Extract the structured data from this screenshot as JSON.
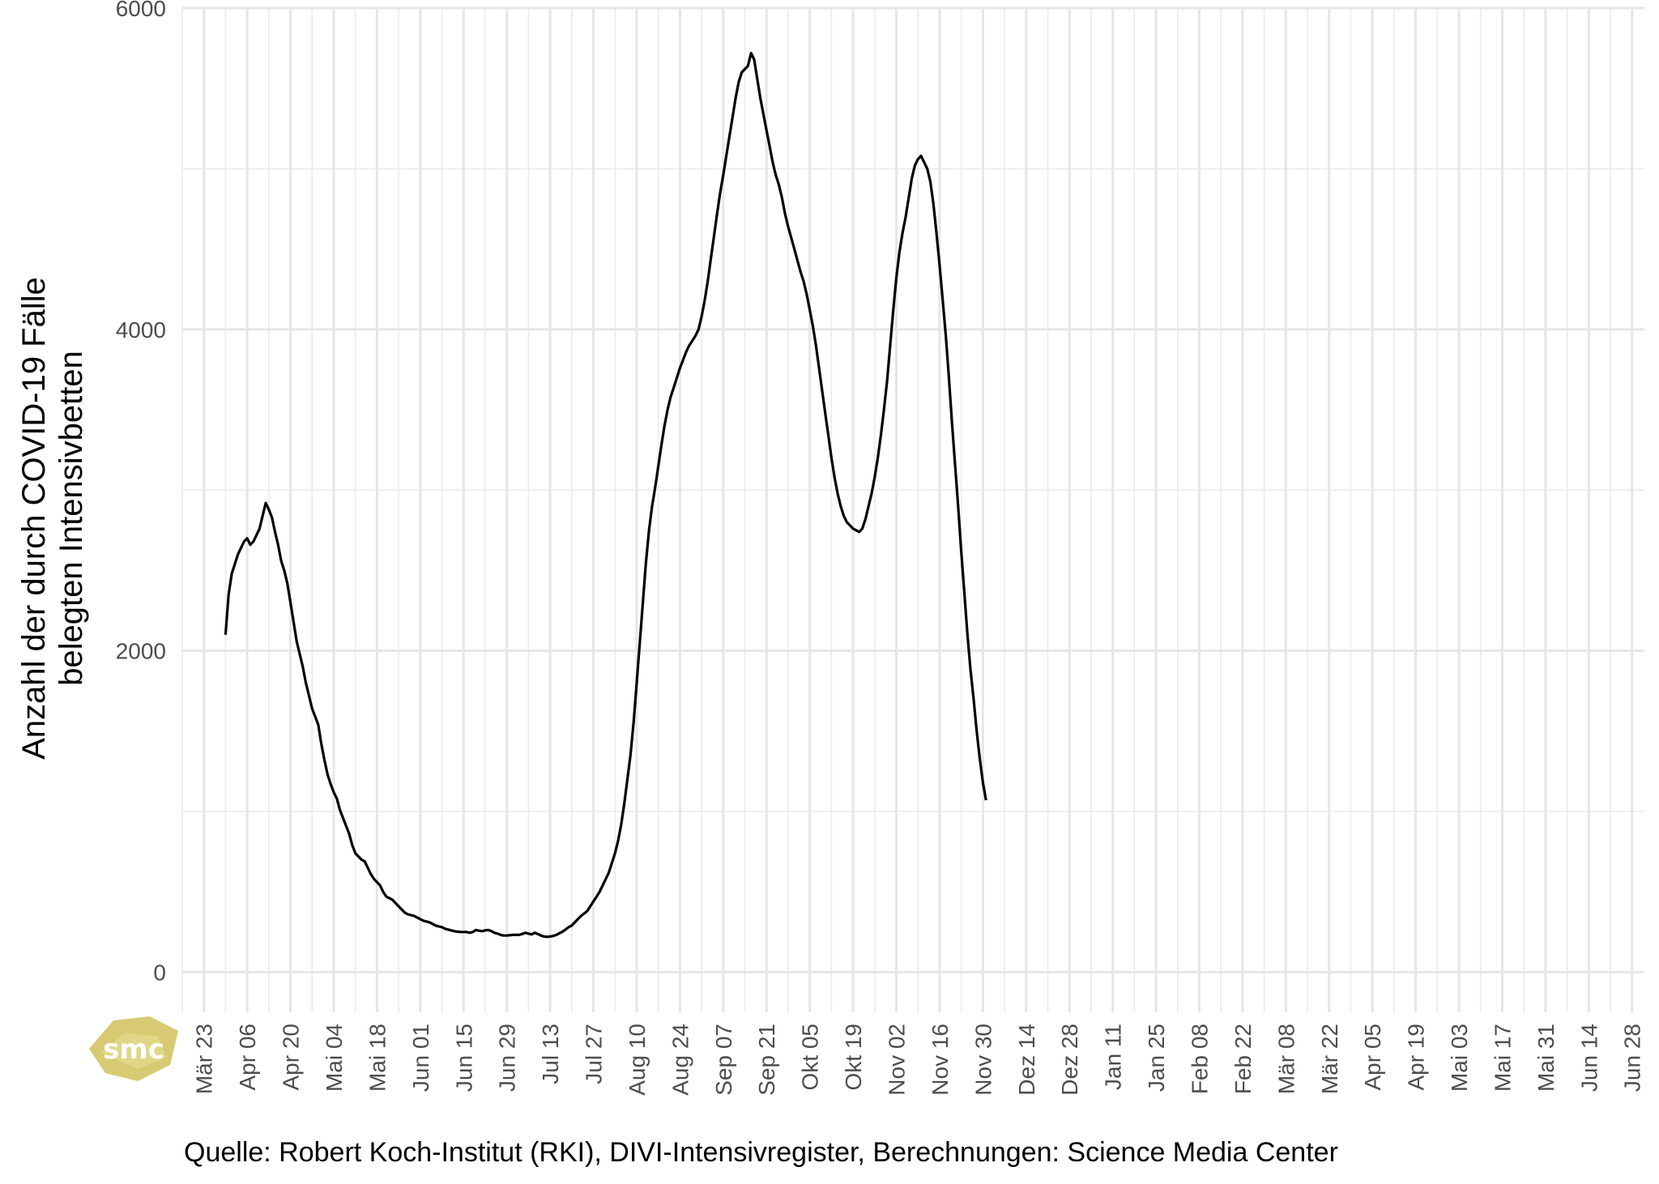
{
  "chart_data": {
    "type": "line",
    "ylabel": "Anzahl der durch COVID-19 Fälle belegten Intensivbetten",
    "ylabel_lines": [
      "Anzahl der durch COVID-19 Fälle",
      "belegten Intensivbetten"
    ],
    "xlabel": "",
    "ylim": [
      -250,
      6000
    ],
    "y_ticks": [
      0,
      2000,
      4000,
      6000
    ],
    "x_range": [
      "2020-03-16",
      "2021-07-02"
    ],
    "x_tick_labels": [
      "Mär 23",
      "Apr 06",
      "Apr 20",
      "Mai 04",
      "Mai 18",
      "Jun 01",
      "Jun 15",
      "Jun 29",
      "Jul 13",
      "Jul 27",
      "Aug 10",
      "Aug 24",
      "Sep 07",
      "Sep 21",
      "Okt 05",
      "Okt 19",
      "Nov 02",
      "Nov 16",
      "Nov 30",
      "Dez 14",
      "Dez 28",
      "Jan 11",
      "Jan 25",
      "Feb 08",
      "Feb 22",
      "Mär 08",
      "Mär 22",
      "Apr 05",
      "Apr 19",
      "Mai 03",
      "Mai 17",
      "Mai 31",
      "Jun 14",
      "Jun 28"
    ],
    "x_tick_dates": [
      "2020-03-23",
      "2020-04-06",
      "2020-04-20",
      "2020-05-04",
      "2020-05-18",
      "2020-06-01",
      "2020-06-15",
      "2020-06-29",
      "2020-07-13",
      "2020-07-27",
      "2020-08-10",
      "2020-08-24",
      "2020-09-07",
      "2020-09-21",
      "2020-10-05",
      "2020-10-19",
      "2020-11-02",
      "2020-11-16",
      "2020-11-30",
      "2020-12-14",
      "2020-12-28",
      "2021-01-11",
      "2021-01-25",
      "2021-02-08",
      "2021-02-22",
      "2021-03-08",
      "2021-03-22",
      "2021-04-05",
      "2021-04-19",
      "2021-05-03",
      "2021-05-17",
      "2021-05-31",
      "2021-06-14",
      "2021-06-28"
    ],
    "grid": true,
    "line_color": "#000000",
    "series": [
      {
        "points": [
          [
            "2020-03-30",
            2100
          ],
          [
            "2020-03-31",
            2350
          ],
          [
            "2020-04-01",
            2480
          ],
          [
            "2020-04-02",
            2540
          ],
          [
            "2020-04-03",
            2600
          ],
          [
            "2020-04-04",
            2640
          ],
          [
            "2020-04-05",
            2680
          ],
          [
            "2020-04-06",
            2700
          ],
          [
            "2020-04-07",
            2660
          ],
          [
            "2020-04-08",
            2680
          ],
          [
            "2020-04-09",
            2720
          ],
          [
            "2020-04-10",
            2760
          ],
          [
            "2020-04-11",
            2840
          ],
          [
            "2020-04-12",
            2920
          ],
          [
            "2020-04-13",
            2880
          ],
          [
            "2020-04-14",
            2830
          ],
          [
            "2020-04-15",
            2740
          ],
          [
            "2020-04-16",
            2660
          ],
          [
            "2020-04-17",
            2560
          ],
          [
            "2020-04-18",
            2500
          ],
          [
            "2020-04-19",
            2420
          ],
          [
            "2020-04-20",
            2300
          ],
          [
            "2020-04-21",
            2180
          ],
          [
            "2020-04-22",
            2060
          ],
          [
            "2020-04-23",
            1980
          ],
          [
            "2020-04-24",
            1900
          ],
          [
            "2020-04-25",
            1800
          ],
          [
            "2020-04-26",
            1720
          ],
          [
            "2020-04-27",
            1640
          ],
          [
            "2020-04-28",
            1590
          ],
          [
            "2020-04-29",
            1540
          ],
          [
            "2020-04-30",
            1420
          ],
          [
            "2020-05-01",
            1320
          ],
          [
            "2020-05-02",
            1230
          ],
          [
            "2020-05-03",
            1170
          ],
          [
            "2020-05-04",
            1120
          ],
          [
            "2020-05-05",
            1080
          ],
          [
            "2020-05-06",
            1010
          ],
          [
            "2020-05-07",
            960
          ],
          [
            "2020-05-08",
            910
          ],
          [
            "2020-05-09",
            860
          ],
          [
            "2020-05-10",
            790
          ],
          [
            "2020-05-11",
            740
          ],
          [
            "2020-05-12",
            720
          ],
          [
            "2020-05-13",
            700
          ],
          [
            "2020-05-14",
            690
          ],
          [
            "2020-05-15",
            650
          ],
          [
            "2020-05-16",
            610
          ],
          [
            "2020-05-17",
            580
          ],
          [
            "2020-05-18",
            560
          ],
          [
            "2020-05-19",
            540
          ],
          [
            "2020-05-20",
            500
          ],
          [
            "2020-05-21",
            470
          ],
          [
            "2020-05-22",
            460
          ],
          [
            "2020-05-23",
            450
          ],
          [
            "2020-05-24",
            430
          ],
          [
            "2020-05-25",
            410
          ],
          [
            "2020-05-26",
            390
          ],
          [
            "2020-05-27",
            370
          ],
          [
            "2020-05-28",
            360
          ],
          [
            "2020-05-29",
            355
          ],
          [
            "2020-05-30",
            350
          ],
          [
            "2020-05-31",
            340
          ],
          [
            "2020-06-01",
            330
          ],
          [
            "2020-06-02",
            320
          ],
          [
            "2020-06-03",
            315
          ],
          [
            "2020-06-04",
            310
          ],
          [
            "2020-06-05",
            300
          ],
          [
            "2020-06-06",
            290
          ],
          [
            "2020-06-07",
            285
          ],
          [
            "2020-06-08",
            280
          ],
          [
            "2020-06-09",
            270
          ],
          [
            "2020-06-10",
            265
          ],
          [
            "2020-06-11",
            260
          ],
          [
            "2020-06-12",
            255
          ],
          [
            "2020-06-13",
            252
          ],
          [
            "2020-06-14",
            250
          ],
          [
            "2020-06-15",
            250
          ],
          [
            "2020-06-16",
            250
          ],
          [
            "2020-06-17",
            245
          ],
          [
            "2020-06-18",
            250
          ],
          [
            "2020-06-19",
            262
          ],
          [
            "2020-06-20",
            258
          ],
          [
            "2020-06-21",
            255
          ],
          [
            "2020-06-22",
            260
          ],
          [
            "2020-06-23",
            262
          ],
          [
            "2020-06-24",
            255
          ],
          [
            "2020-06-25",
            245
          ],
          [
            "2020-06-26",
            240
          ],
          [
            "2020-06-27",
            232
          ],
          [
            "2020-06-28",
            228
          ],
          [
            "2020-06-29",
            228
          ],
          [
            "2020-06-30",
            230
          ],
          [
            "2020-07-01",
            232
          ],
          [
            "2020-07-02",
            232
          ],
          [
            "2020-07-03",
            232
          ],
          [
            "2020-07-04",
            238
          ],
          [
            "2020-07-05",
            245
          ],
          [
            "2020-07-06",
            240
          ],
          [
            "2020-07-07",
            235
          ],
          [
            "2020-07-08",
            245
          ],
          [
            "2020-07-09",
            238
          ],
          [
            "2020-07-10",
            228
          ],
          [
            "2020-07-11",
            222
          ],
          [
            "2020-07-12",
            220
          ],
          [
            "2020-07-13",
            222
          ],
          [
            "2020-07-14",
            225
          ],
          [
            "2020-07-15",
            232
          ],
          [
            "2020-07-16",
            242
          ],
          [
            "2020-07-17",
            252
          ],
          [
            "2020-07-18",
            265
          ],
          [
            "2020-07-19",
            280
          ],
          [
            "2020-07-20",
            290
          ],
          [
            "2020-07-21",
            310
          ],
          [
            "2020-07-22",
            330
          ],
          [
            "2020-07-23",
            350
          ],
          [
            "2020-07-24",
            365
          ],
          [
            "2020-07-25",
            380
          ],
          [
            "2020-07-26",
            410
          ],
          [
            "2020-07-27",
            440
          ],
          [
            "2020-07-28",
            470
          ],
          [
            "2020-07-29",
            500
          ],
          [
            "2020-07-30",
            540
          ],
          [
            "2020-07-31",
            580
          ],
          [
            "2020-08-01",
            620
          ],
          [
            "2020-08-02",
            680
          ],
          [
            "2020-08-03",
            740
          ],
          [
            "2020-08-04",
            820
          ],
          [
            "2020-08-05",
            920
          ],
          [
            "2020-08-06",
            1050
          ],
          [
            "2020-08-07",
            1200
          ],
          [
            "2020-08-08",
            1350
          ],
          [
            "2020-08-09",
            1550
          ],
          [
            "2020-08-10",
            1800
          ],
          [
            "2020-08-11",
            2050
          ],
          [
            "2020-08-12",
            2300
          ],
          [
            "2020-08-13",
            2550
          ],
          [
            "2020-08-14",
            2750
          ],
          [
            "2020-08-15",
            2900
          ],
          [
            "2020-08-16",
            3020
          ],
          [
            "2020-08-17",
            3150
          ],
          [
            "2020-08-18",
            3280
          ],
          [
            "2020-08-19",
            3400
          ],
          [
            "2020-08-20",
            3500
          ],
          [
            "2020-08-21",
            3580
          ],
          [
            "2020-08-22",
            3640
          ],
          [
            "2020-08-23",
            3700
          ],
          [
            "2020-08-24",
            3760
          ],
          [
            "2020-08-25",
            3810
          ],
          [
            "2020-08-26",
            3860
          ],
          [
            "2020-08-27",
            3900
          ],
          [
            "2020-08-28",
            3930
          ],
          [
            "2020-08-29",
            3960
          ],
          [
            "2020-08-30",
            4000
          ],
          [
            "2020-08-31",
            4080
          ],
          [
            "2020-09-01",
            4180
          ],
          [
            "2020-09-02",
            4300
          ],
          [
            "2020-09-03",
            4440
          ],
          [
            "2020-09-04",
            4580
          ],
          [
            "2020-09-05",
            4720
          ],
          [
            "2020-09-06",
            4850
          ],
          [
            "2020-09-07",
            4960
          ],
          [
            "2020-09-08",
            5080
          ],
          [
            "2020-09-09",
            5200
          ],
          [
            "2020-09-10",
            5320
          ],
          [
            "2020-09-11",
            5440
          ],
          [
            "2020-09-12",
            5540
          ],
          [
            "2020-09-13",
            5600
          ],
          [
            "2020-09-14",
            5620
          ],
          [
            "2020-09-15",
            5640
          ],
          [
            "2020-09-16",
            5720
          ],
          [
            "2020-09-17",
            5680
          ],
          [
            "2020-09-18",
            5560
          ],
          [
            "2020-09-19",
            5440
          ],
          [
            "2020-09-20",
            5340
          ],
          [
            "2020-09-21",
            5240
          ],
          [
            "2020-09-22",
            5140
          ],
          [
            "2020-09-23",
            5040
          ],
          [
            "2020-09-24",
            4960
          ],
          [
            "2020-09-25",
            4900
          ],
          [
            "2020-09-26",
            4820
          ],
          [
            "2020-09-27",
            4720
          ],
          [
            "2020-09-28",
            4640
          ],
          [
            "2020-09-29",
            4570
          ],
          [
            "2020-09-30",
            4500
          ],
          [
            "2020-10-01",
            4430
          ],
          [
            "2020-10-02",
            4360
          ],
          [
            "2020-10-03",
            4300
          ],
          [
            "2020-10-04",
            4220
          ],
          [
            "2020-10-05",
            4120
          ],
          [
            "2020-10-06",
            4020
          ],
          [
            "2020-10-07",
            3900
          ],
          [
            "2020-10-08",
            3760
          ],
          [
            "2020-10-09",
            3620
          ],
          [
            "2020-10-10",
            3480
          ],
          [
            "2020-10-11",
            3340
          ],
          [
            "2020-10-12",
            3200
          ],
          [
            "2020-10-13",
            3080
          ],
          [
            "2020-10-14",
            2980
          ],
          [
            "2020-10-15",
            2900
          ],
          [
            "2020-10-16",
            2840
          ],
          [
            "2020-10-17",
            2800
          ],
          [
            "2020-10-18",
            2780
          ],
          [
            "2020-10-19",
            2760
          ],
          [
            "2020-10-20",
            2750
          ],
          [
            "2020-10-21",
            2740
          ],
          [
            "2020-10-22",
            2760
          ],
          [
            "2020-10-23",
            2820
          ],
          [
            "2020-10-24",
            2900
          ],
          [
            "2020-10-25",
            2980
          ],
          [
            "2020-10-26",
            3080
          ],
          [
            "2020-10-27",
            3200
          ],
          [
            "2020-10-28",
            3340
          ],
          [
            "2020-10-29",
            3500
          ],
          [
            "2020-10-30",
            3680
          ],
          [
            "2020-10-31",
            3900
          ],
          [
            "2020-11-01",
            4120
          ],
          [
            "2020-11-02",
            4320
          ],
          [
            "2020-11-03",
            4480
          ],
          [
            "2020-11-04",
            4600
          ],
          [
            "2020-11-05",
            4700
          ],
          [
            "2020-11-06",
            4820
          ],
          [
            "2020-11-07",
            4940
          ],
          [
            "2020-11-08",
            5020
          ],
          [
            "2020-11-09",
            5060
          ],
          [
            "2020-11-10",
            5080
          ],
          [
            "2020-11-11",
            5040
          ],
          [
            "2020-11-12",
            5000
          ],
          [
            "2020-11-13",
            4920
          ],
          [
            "2020-11-14",
            4780
          ],
          [
            "2020-11-15",
            4600
          ],
          [
            "2020-11-16",
            4400
          ],
          [
            "2020-11-17",
            4180
          ],
          [
            "2020-11-18",
            3960
          ],
          [
            "2020-11-19",
            3700
          ],
          [
            "2020-11-20",
            3420
          ],
          [
            "2020-11-21",
            3160
          ],
          [
            "2020-11-22",
            2900
          ],
          [
            "2020-11-23",
            2620
          ],
          [
            "2020-11-24",
            2360
          ],
          [
            "2020-11-25",
            2100
          ],
          [
            "2020-11-26",
            1880
          ],
          [
            "2020-11-27",
            1700
          ],
          [
            "2020-11-28",
            1500
          ],
          [
            "2020-11-29",
            1330
          ],
          [
            "2020-11-30",
            1180
          ],
          [
            "2020-12-01",
            1070
          ]
        ]
      }
    ],
    "caption": "Quelle: Robert Koch-Institut (RKI), DIVI-Intensivregister, Berechnungen: Science Media Center"
  },
  "logo": {
    "text": "smc",
    "color": "#d4c463"
  }
}
